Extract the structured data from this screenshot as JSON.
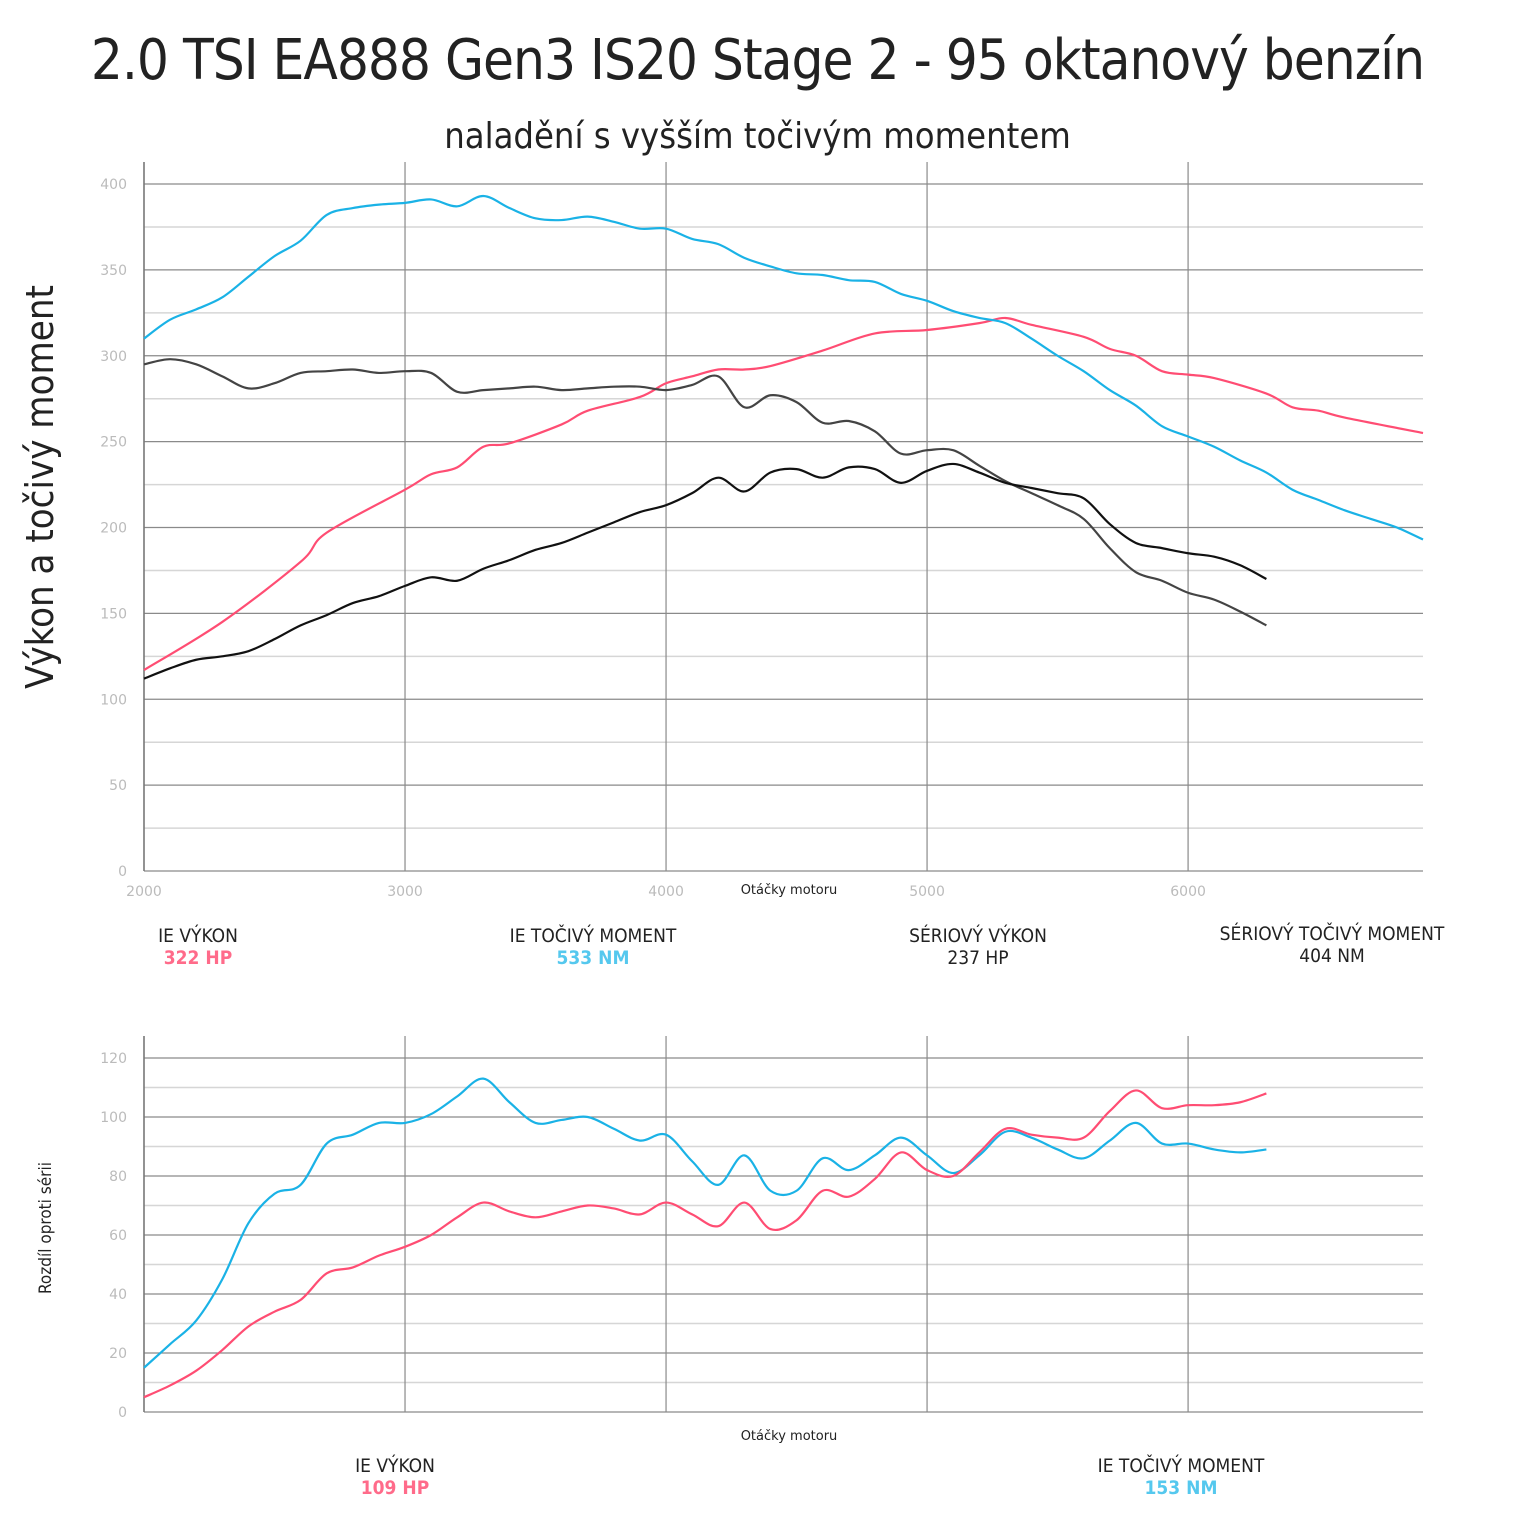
{
  "title": "2.0 TSI EA888 Gen3 IS20 Stage 2 - 95 oktanový benzín",
  "subtitle": "naladění s vyšším točivým momentem",
  "colors": {
    "ie_power": "#ff4d73",
    "ie_torque": "#1ab2e6",
    "stock_power": "#111111",
    "stock_torque": "#444444",
    "grid_major": "#8a8a8a",
    "grid_minor": "#d6d6d6",
    "tick": "#bbbbbb"
  },
  "legend_top": [
    {
      "label": "IE VÝKON",
      "value": "322 HP",
      "color": "#ff6b8a"
    },
    {
      "label": "IE TOČIVÝ MOMENT",
      "value": "533 NM",
      "color": "#55c8ee"
    },
    {
      "label": "SÉRIOVÝ VÝKON",
      "value": "237 HP",
      "color": "#222222"
    },
    {
      "label": "SÉRIOVÝ TOČIVÝ MOMENT",
      "value": "404 NM",
      "color": "#222222"
    }
  ],
  "legend_bottom": [
    {
      "label": "IE VÝKON",
      "value": "109 HP",
      "color": "#ff6b8a"
    },
    {
      "label": "IE TOČIVÝ MOMENT",
      "value": "153 NM",
      "color": "#55c8ee"
    }
  ],
  "chart_data": [
    {
      "type": "line",
      "title": "2.0 TSI EA888 Gen3 IS20 Stage 2 - 95 oktanový benzín",
      "xlabel": "Otáčky motoru",
      "ylabel": "Výkon a točivý moment",
      "xlim": [
        2000,
        6900
      ],
      "ylim": [
        0,
        400
      ],
      "xticks": [
        "2000",
        "3000",
        "4000",
        "5000",
        "6000"
      ],
      "yticks": [
        "0",
        "50",
        "100",
        "150",
        "200",
        "250",
        "300",
        "350",
        "400"
      ],
      "grid": true,
      "series": [
        {
          "name": "IE VÝKON",
          "color": "#ff4d73",
          "x": [
            2000,
            2300,
            2600,
            2700,
            3000,
            3100,
            3200,
            3300,
            3400,
            3600,
            3700,
            3900,
            4000,
            4100,
            4200,
            4300,
            4400,
            4600,
            4800,
            5000,
            5200,
            5300,
            5400,
            5600,
            5700,
            5800,
            5900,
            6000,
            6100,
            6300,
            6400,
            6500,
            6600,
            6900
          ],
          "y": [
            117,
            145,
            180,
            197,
            222,
            231,
            235,
            247,
            249,
            260,
            268,
            276,
            284,
            288,
            292,
            292,
            294,
            303,
            313,
            315,
            319,
            322,
            318,
            311,
            304,
            300,
            291,
            289,
            287,
            278,
            270,
            268,
            264,
            255
          ]
        },
        {
          "name": "IE TOČIVÝ MOMENT",
          "color": "#1ab2e6",
          "x": [
            2000,
            2100,
            2200,
            2300,
            2400,
            2500,
            2600,
            2700,
            2800,
            2900,
            3000,
            3100,
            3200,
            3300,
            3400,
            3500,
            3600,
            3700,
            3800,
            3900,
            4000,
            4100,
            4200,
            4300,
            4400,
            4500,
            4600,
            4700,
            4800,
            4900,
            5000,
            5100,
            5200,
            5300,
            5400,
            5500,
            5600,
            5700,
            5800,
            5900,
            6000,
            6100,
            6200,
            6300,
            6400,
            6500,
            6600,
            6700,
            6800,
            6900
          ],
          "y": [
            310,
            321,
            327,
            334,
            346,
            358,
            367,
            382,
            386,
            388,
            389,
            391,
            387,
            393,
            386,
            380,
            379,
            381,
            378,
            374,
            374,
            368,
            365,
            357,
            352,
            348,
            347,
            344,
            343,
            336,
            332,
            326,
            322,
            319,
            310,
            300,
            291,
            280,
            271,
            259,
            253,
            247,
            239,
            232,
            222,
            216,
            210,
            205,
            200,
            193
          ]
        },
        {
          "name": "SÉRIOVÝ TOČIVÝ MOMENT",
          "color": "#444444",
          "x": [
            2000,
            2100,
            2200,
            2300,
            2400,
            2500,
            2600,
            2700,
            2800,
            2900,
            3000,
            3100,
            3200,
            3300,
            3400,
            3500,
            3600,
            3700,
            3800,
            3900,
            4000,
            4100,
            4200,
            4300,
            4400,
            4500,
            4600,
            4700,
            4800,
            4900,
            5000,
            5100,
            5200,
            5300,
            5400,
            5500,
            5600,
            5700,
            5800,
            5900,
            6000,
            6100,
            6200,
            6300
          ],
          "y": [
            295,
            298,
            295,
            288,
            281,
            284,
            290,
            291,
            292,
            290,
            291,
            290,
            279,
            280,
            281,
            282,
            280,
            281,
            282,
            282,
            280,
            283,
            288,
            270,
            277,
            273,
            261,
            262,
            256,
            243,
            245,
            245,
            236,
            227,
            220,
            213,
            205,
            188,
            174,
            169,
            162,
            158,
            151,
            143
          ]
        },
        {
          "name": "SÉRIOVÝ VÝKON",
          "color": "#111111",
          "x": [
            2000,
            2100,
            2200,
            2300,
            2400,
            2500,
            2600,
            2700,
            2800,
            2900,
            3000,
            3100,
            3200,
            3300,
            3400,
            3500,
            3600,
            3700,
            3800,
            3900,
            4000,
            4100,
            4200,
            4300,
            4400,
            4500,
            4600,
            4700,
            4800,
            4900,
            5000,
            5100,
            5200,
            5300,
            5400,
            5500,
            5600,
            5700,
            5800,
            5900,
            6000,
            6100,
            6200,
            6300
          ],
          "y": [
            112,
            118,
            123,
            125,
            128,
            135,
            143,
            149,
            156,
            160,
            166,
            171,
            169,
            176,
            181,
            187,
            191,
            197,
            203,
            209,
            213,
            220,
            229,
            221,
            232,
            234,
            229,
            235,
            234,
            226,
            233,
            237,
            232,
            226,
            223,
            220,
            217,
            202,
            191,
            188,
            185,
            183,
            178,
            170
          ]
        }
      ]
    },
    {
      "type": "line",
      "xlabel": "Otáčky motoru",
      "ylabel": "Rozdíl oproti sérii",
      "xlim": [
        2000,
        6900
      ],
      "ylim": [
        0,
        120
      ],
      "yticks": [
        "0",
        "20",
        "40",
        "60",
        "80",
        "100",
        "120"
      ],
      "grid": true,
      "series": [
        {
          "name": "IE TOČIVÝ MOMENT rozdíl",
          "color": "#1ab2e6",
          "x": [
            2000,
            2100,
            2200,
            2300,
            2400,
            2500,
            2600,
            2700,
            2800,
            2900,
            3000,
            3100,
            3200,
            3300,
            3400,
            3500,
            3600,
            3700,
            3800,
            3900,
            4000,
            4100,
            4200,
            4300,
            4400,
            4500,
            4600,
            4700,
            4800,
            4900,
            5000,
            5100,
            5200,
            5300,
            5400,
            5500,
            5600,
            5700,
            5800,
            5900,
            6000,
            6100,
            6200,
            6300
          ],
          "y": [
            15,
            23,
            31,
            45,
            64,
            74,
            77,
            91,
            94,
            98,
            98,
            101,
            107,
            113,
            105,
            98,
            99,
            100,
            96,
            92,
            94,
            85,
            77,
            87,
            75,
            75,
            86,
            82,
            87,
            93,
            87,
            81,
            87,
            95,
            93,
            89,
            86,
            92,
            98,
            91,
            91,
            89,
            88,
            89
          ]
        },
        {
          "name": "IE VÝKON rozdíl",
          "color": "#ff4d73",
          "x": [
            2000,
            2100,
            2200,
            2300,
            2400,
            2500,
            2600,
            2700,
            2800,
            2900,
            3000,
            3100,
            3200,
            3300,
            3400,
            3500,
            3600,
            3700,
            3800,
            3900,
            4000,
            4100,
            4200,
            4300,
            4400,
            4500,
            4600,
            4700,
            4800,
            4900,
            5000,
            5100,
            5200,
            5300,
            5400,
            5500,
            5600,
            5700,
            5800,
            5900,
            6000,
            6100,
            6200,
            6300
          ],
          "y": [
            5,
            9,
            14,
            21,
            29,
            34,
            38,
            47,
            49,
            53,
            56,
            60,
            66,
            71,
            68,
            66,
            68,
            70,
            69,
            67,
            71,
            67,
            63,
            71,
            62,
            65,
            75,
            73,
            79,
            88,
            82,
            80,
            88,
            96,
            94,
            93,
            93,
            102,
            109,
            103,
            104,
            104,
            105,
            108
          ]
        }
      ]
    }
  ]
}
